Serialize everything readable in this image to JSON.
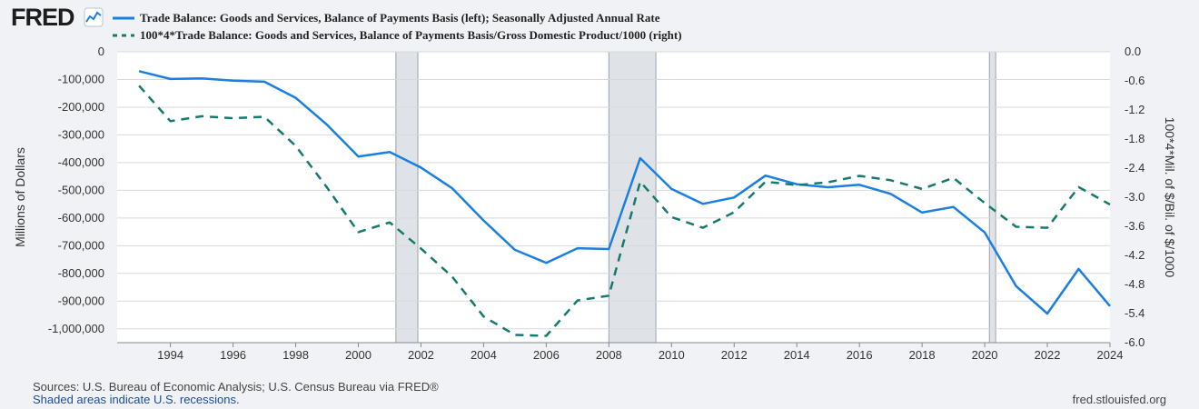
{
  "brand": {
    "logo_text": "FRED"
  },
  "footer": {
    "sources": "Sources: U.S. Bureau of Economic Analysis; U.S. Census Bureau via FRED®",
    "recessions_note": "Shaded areas indicate U.S. recessions.",
    "site": "fred.stlouisfed.org"
  },
  "colors": {
    "series1": "#1a7fe0",
    "series2": "#157a6e",
    "recession": "#dfe3e8",
    "plot_bg": "#ffffff",
    "grid": "#d9d9d9"
  },
  "chart_data": {
    "type": "line",
    "x": [
      1993,
      1994,
      1995,
      1996,
      1997,
      1998,
      1999,
      2000,
      2001,
      2002,
      2003,
      2004,
      2005,
      2006,
      2007,
      2008,
      2009,
      2010,
      2011,
      2012,
      2013,
      2014,
      2015,
      2016,
      2017,
      2018,
      2019,
      2020,
      2021,
      2022,
      2023,
      2024
    ],
    "x_ticks": [
      1994,
      1996,
      1998,
      2000,
      2002,
      2004,
      2006,
      2008,
      2010,
      2012,
      2014,
      2016,
      2018,
      2020,
      2022,
      2024
    ],
    "xlim": [
      1992.3,
      2024
    ],
    "series": [
      {
        "name": "Trade Balance: Goods and Services, Balance of Payments Basis (left); Seasonally Adjusted Annual Rate",
        "axis": "left",
        "style": "solid",
        "values": [
          -70000,
          -98000,
          -96000,
          -104000,
          -108000,
          -166000,
          -263000,
          -378000,
          -362000,
          -418000,
          -493000,
          -609000,
          -715000,
          -762000,
          -709000,
          -712000,
          -384000,
          -495000,
          -549000,
          -526000,
          -447000,
          -478000,
          -489000,
          -480000,
          -513000,
          -580000,
          -560000,
          -652000,
          -846000,
          -945000,
          -784000,
          -918000
        ]
      },
      {
        "name": "100*4*Trade Balance: Goods and Services, Balance of Payments Basis/Gross Domestic Product/1000 (right)",
        "axis": "right",
        "style": "dashed",
        "values": [
          -0.7,
          -1.43,
          -1.33,
          -1.37,
          -1.34,
          -1.94,
          -2.8,
          -3.72,
          -3.52,
          -4.06,
          -4.64,
          -5.46,
          -5.84,
          -5.86,
          -5.13,
          -5.03,
          -2.68,
          -3.41,
          -3.63,
          -3.31,
          -2.68,
          -2.75,
          -2.69,
          -2.56,
          -2.65,
          -2.83,
          -2.6,
          -3.12,
          -3.61,
          -3.63,
          -2.79,
          -3.15
        ]
      }
    ],
    "left_axis": {
      "label": "Millions of Dollars",
      "ylim": [
        -1050000,
        0
      ],
      "ticks": [
        0,
        -100000,
        -200000,
        -300000,
        -400000,
        -500000,
        -600000,
        -700000,
        -800000,
        -900000,
        -1000000
      ],
      "tick_labels": [
        "0",
        "-100,000",
        "-200,000",
        "-300,000",
        "-400,000",
        "-500,000",
        "-600,000",
        "-700,000",
        "-800,000",
        "-900,000",
        "-1,000,000"
      ]
    },
    "right_axis": {
      "label": "100*4*Mil. of $/Bil. of $/1000",
      "ylim": [
        -6.0,
        0.0
      ],
      "ticks": [
        0,
        -0.6,
        -1.2,
        -1.8,
        -2.4,
        -3.0,
        -3.6,
        -4.2,
        -4.8,
        -5.4,
        -6.0
      ],
      "tick_labels": [
        "0.0",
        "-0.6",
        "-1.2",
        "-1.8",
        "-2.4",
        "-3.0",
        "-3.6",
        "-4.2",
        "-4.8",
        "-5.4",
        "-6.0"
      ]
    },
    "recessions": [
      [
        2001.2,
        2001.9
      ],
      [
        2008.0,
        2009.5
      ],
      [
        2020.15,
        2020.35
      ]
    ]
  }
}
